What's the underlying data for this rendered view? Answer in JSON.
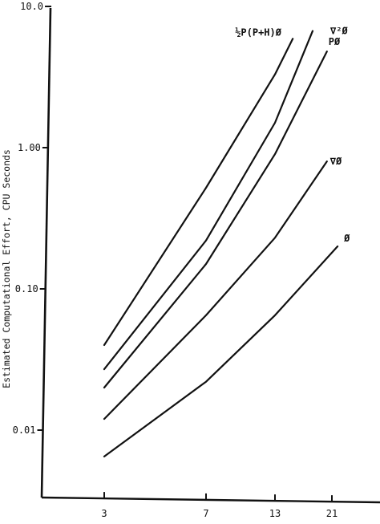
{
  "chart_data": {
    "type": "line",
    "title": "",
    "xlabel": "",
    "ylabel": "Estimated Computational Effort, CPU Seconds",
    "yscale": "log",
    "ylim": [
      0.005,
      10.0
    ],
    "xlim": [
      1.2,
      26
    ],
    "grid": false,
    "legend": "none (series labeled at line ends)",
    "x_ticks": [
      {
        "value": 3,
        "label": "3"
      },
      {
        "value": 7,
        "label": "7"
      },
      {
        "value": 13,
        "label": "13"
      },
      {
        "value": 21,
        "label": "21"
      }
    ],
    "y_ticks": [
      {
        "value": 10.0,
        "label": "10.0"
      },
      {
        "value": 1.0,
        "label": "1.00"
      },
      {
        "value": 0.1,
        "label": "0.10"
      },
      {
        "value": 0.01,
        "label": "0.01"
      }
    ],
    "series": [
      {
        "name": "½P(P+H)Ø",
        "color": "#111111",
        "x": [
          3,
          7,
          13,
          15.5
        ],
        "y": [
          0.04,
          0.52,
          3.3,
          5.9
        ]
      },
      {
        "name": "∇²Ø",
        "color": "#111111",
        "x": [
          3,
          7,
          13,
          18.3
        ],
        "y": [
          0.027,
          0.22,
          1.5,
          6.7
        ]
      },
      {
        "name": "PØ",
        "color": "#111111",
        "x": [
          3,
          7,
          13,
          20.3
        ],
        "y": [
          0.02,
          0.15,
          0.9,
          4.8
        ]
      },
      {
        "name": "∇Ø",
        "color": "#111111",
        "x": [
          3,
          7,
          13,
          20.3
        ],
        "y": [
          0.012,
          0.065,
          0.23,
          0.8
        ]
      },
      {
        "name": "Ø",
        "color": "#111111",
        "x": [
          3,
          7,
          13,
          21.8
        ],
        "y": [
          0.0065,
          0.022,
          0.065,
          0.2
        ]
      }
    ]
  }
}
